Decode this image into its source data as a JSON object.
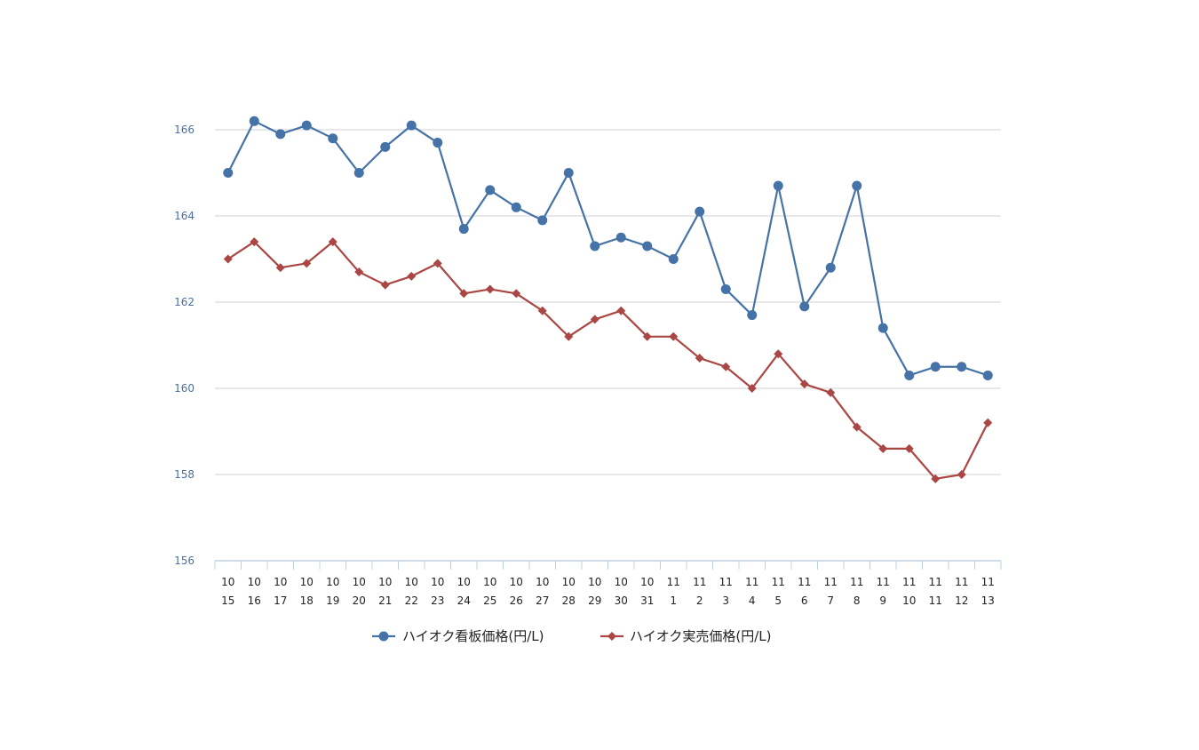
{
  "chart_data": {
    "type": "line",
    "categories": [
      [
        "10",
        "15"
      ],
      [
        "10",
        "16"
      ],
      [
        "10",
        "17"
      ],
      [
        "10",
        "18"
      ],
      [
        "10",
        "19"
      ],
      [
        "10",
        "20"
      ],
      [
        "10",
        "21"
      ],
      [
        "10",
        "22"
      ],
      [
        "10",
        "23"
      ],
      [
        "10",
        "24"
      ],
      [
        "10",
        "25"
      ],
      [
        "10",
        "26"
      ],
      [
        "10",
        "27"
      ],
      [
        "10",
        "28"
      ],
      [
        "10",
        "29"
      ],
      [
        "10",
        "30"
      ],
      [
        "10",
        "31"
      ],
      [
        "11",
        "1"
      ],
      [
        "11",
        "2"
      ],
      [
        "11",
        "3"
      ],
      [
        "11",
        "4"
      ],
      [
        "11",
        "5"
      ],
      [
        "11",
        "6"
      ],
      [
        "11",
        "7"
      ],
      [
        "11",
        "8"
      ],
      [
        "11",
        "9"
      ],
      [
        "11",
        "10"
      ],
      [
        "11",
        "11"
      ],
      [
        "11",
        "12"
      ],
      [
        "11",
        "13"
      ]
    ],
    "series": [
      {
        "name": "ハイオク看板価格(円/L)",
        "color": "#4572a7",
        "marker": "circle",
        "values": [
          165.0,
          166.2,
          165.9,
          166.1,
          165.8,
          165.0,
          165.6,
          166.1,
          165.7,
          163.7,
          164.6,
          164.2,
          163.9,
          165.0,
          163.3,
          163.5,
          163.3,
          163.0,
          164.1,
          162.3,
          161.7,
          164.7,
          161.9,
          162.8,
          164.7,
          161.4,
          160.3,
          160.5,
          160.5,
          160.3
        ]
      },
      {
        "name": "ハイオク実売価格(円/L)",
        "color": "#aa4643",
        "marker": "diamond",
        "values": [
          163.0,
          163.4,
          162.8,
          162.9,
          163.4,
          162.7,
          162.4,
          162.6,
          162.9,
          162.2,
          162.3,
          162.2,
          161.8,
          161.2,
          161.6,
          161.8,
          161.2,
          161.2,
          160.7,
          160.5,
          160.0,
          160.8,
          160.1,
          159.9,
          159.1,
          158.6,
          158.6,
          157.9,
          158.0,
          159.2
        ]
      }
    ],
    "yticks": [
      "156",
      "158",
      "160",
      "162",
      "164",
      "166"
    ],
    "ylim": [
      156,
      166
    ],
    "grid": true,
    "legend_position": "bottom"
  }
}
